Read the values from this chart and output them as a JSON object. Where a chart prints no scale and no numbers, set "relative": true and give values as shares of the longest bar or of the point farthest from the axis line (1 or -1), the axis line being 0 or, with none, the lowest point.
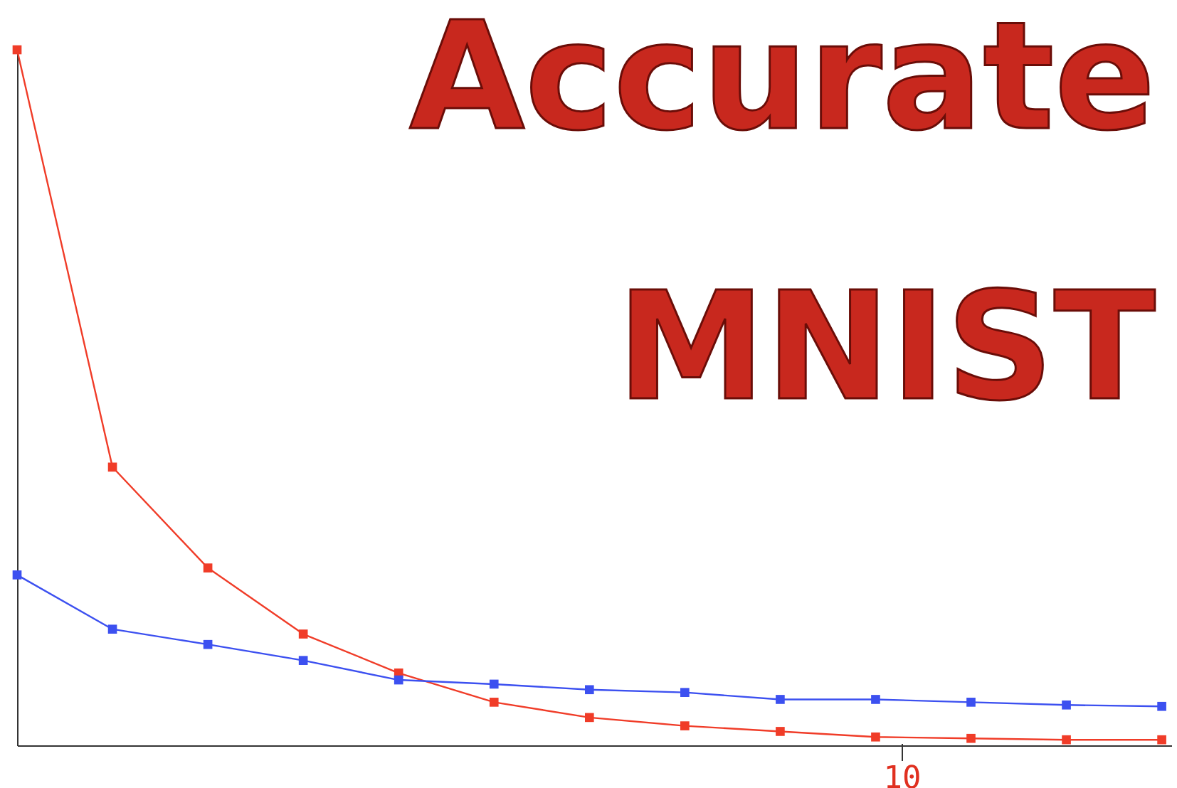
{
  "chart_data": {
    "type": "line",
    "title": "Accurate",
    "subtitle": "MNIST",
    "relative": true,
    "categories": [
      null,
      null,
      null,
      null,
      null,
      null,
      null,
      null,
      null,
      null,
      null,
      null,
      null
    ],
    "annotations": [
      "10"
    ],
    "marker": "square",
    "line_style": "solid",
    "series": [
      {
        "color": "#f03c28",
        "values": [
          1,
          0.4,
          0.255,
          0.16,
          0.104,
          0.062,
          0.04,
          0.028,
          0.02,
          0.012,
          0.01,
          0.008,
          0.008
        ]
      },
      {
        "color": "#3c50f0",
        "values": [
          0.245,
          0.167,
          0.145,
          0.122,
          0.094,
          0.088,
          0.08,
          0.076,
          0.066,
          0.066,
          0.062,
          0.058,
          0.056
        ]
      }
    ]
  }
}
